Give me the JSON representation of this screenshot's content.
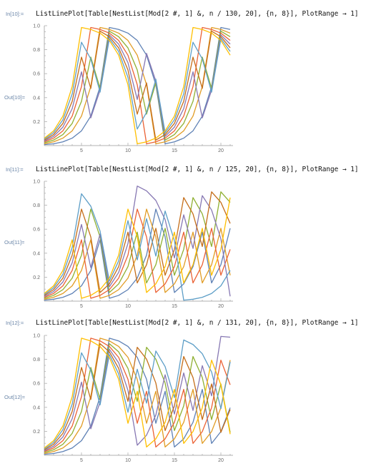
{
  "cells": [
    {
      "in_label": "In[10]:=",
      "code": "ListLinePlot[Table[NestList[Mod[2 #, 1] &, n / 130, 20], {n, 8}], PlotRange → 1]",
      "out_label": "Out[10]=",
      "divisor": 130
    },
    {
      "in_label": "In[11]:=",
      "code": "ListLinePlot[Table[NestList[Mod[2 #, 1] &, n / 125, 20], {n, 8}], PlotRange → 1]",
      "out_label": "Out[11]=",
      "divisor": 125
    },
    {
      "in_label": "In[12]:=",
      "code": "ListLinePlot[Table[NestList[Mod[2 #, 1] &, n / 131, 20], {n, 8}], PlotRange → 1]",
      "out_label": "Out[12]=",
      "divisor": 131
    }
  ],
  "chart_data": [
    {
      "type": "line",
      "title": "",
      "xlabel": "",
      "ylabel": "",
      "x_ticks": [
        "5",
        "10",
        "15",
        "20"
      ],
      "y_ticks": [
        "0.2",
        "0.4",
        "0.6",
        "0.8",
        "1.0"
      ],
      "xlim": [
        1,
        21
      ],
      "ylim": [
        0,
        1
      ],
      "grid": false,
      "series": [
        {
          "values": [
            0.008,
            0.015,
            0.031,
            0.062,
            0.123,
            0.246,
            0.492,
            0.985,
            0.969,
            0.938,
            0.877,
            0.754,
            0.508,
            0.015,
            0.031,
            0.062,
            0.123,
            0.246,
            0.492,
            0.985,
            0.969
          ]
        },
        {
          "values": [
            0.015,
            0.031,
            0.062,
            0.123,
            0.246,
            0.492,
            0.985,
            0.969,
            0.938,
            0.877,
            0.754,
            0.508,
            0.015,
            0.031,
            0.062,
            0.123,
            0.246,
            0.492,
            0.985,
            0.969,
            0.938
          ]
        },
        {
          "values": [
            0.023,
            0.046,
            0.092,
            0.185,
            0.369,
            0.738,
            0.477,
            0.954,
            0.908,
            0.815,
            0.631,
            0.262,
            0.523,
            0.046,
            0.092,
            0.185,
            0.369,
            0.738,
            0.477,
            0.954,
            0.908
          ]
        },
        {
          "values": [
            0.031,
            0.062,
            0.123,
            0.246,
            0.492,
            0.985,
            0.969,
            0.938,
            0.877,
            0.754,
            0.508,
            0.015,
            0.031,
            0.062,
            0.123,
            0.246,
            0.492,
            0.985,
            0.969,
            0.938,
            0.877
          ]
        },
        {
          "values": [
            0.038,
            0.077,
            0.154,
            0.308,
            0.615,
            0.231,
            0.462,
            0.923,
            0.846,
            0.692,
            0.385,
            0.769,
            0.538,
            0.077,
            0.154,
            0.308,
            0.615,
            0.231,
            0.462,
            0.923,
            0.846
          ]
        },
        {
          "values": [
            0.046,
            0.092,
            0.185,
            0.369,
            0.738,
            0.477,
            0.954,
            0.908,
            0.815,
            0.631,
            0.262,
            0.523,
            0.046,
            0.092,
            0.185,
            0.369,
            0.738,
            0.477,
            0.954,
            0.908,
            0.815
          ]
        },
        {
          "values": [
            0.054,
            0.108,
            0.215,
            0.431,
            0.862,
            0.723,
            0.446,
            0.892,
            0.785,
            0.569,
            0.138,
            0.277,
            0.554,
            0.108,
            0.215,
            0.431,
            0.862,
            0.723,
            0.446,
            0.892,
            0.785
          ]
        },
        {
          "values": [
            0.062,
            0.123,
            0.246,
            0.492,
            0.985,
            0.969,
            0.938,
            0.877,
            0.754,
            0.508,
            0.015,
            0.031,
            0.062,
            0.123,
            0.246,
            0.492,
            0.985,
            0.969,
            0.938,
            0.877,
            0.754
          ]
        }
      ]
    },
    {
      "type": "line",
      "title": "",
      "xlabel": "",
      "ylabel": "",
      "x_ticks": [
        "5",
        "10",
        "15",
        "20"
      ],
      "y_ticks": [
        "0.2",
        "0.4",
        "0.6",
        "0.8",
        "1.0"
      ],
      "xlim": [
        1,
        21
      ],
      "ylim": [
        0,
        1
      ],
      "grid": false,
      "series": [
        {
          "values": [
            0.008,
            0.016,
            0.032,
            0.064,
            0.128,
            0.256,
            0.512,
            0.024,
            0.048,
            0.096,
            0.192,
            0.384,
            0.768,
            0.536,
            0.072,
            0.144,
            0.288,
            0.576,
            0.152,
            0.304,
            0.608
          ]
        },
        {
          "values": [
            0.016,
            0.032,
            0.064,
            0.128,
            0.256,
            0.512,
            0.024,
            0.048,
            0.096,
            0.192,
            0.384,
            0.768,
            0.536,
            0.072,
            0.144,
            0.288,
            0.576,
            0.152,
            0.304,
            0.608,
            0.216
          ]
        },
        {
          "values": [
            0.024,
            0.048,
            0.096,
            0.192,
            0.384,
            0.768,
            0.536,
            0.072,
            0.144,
            0.288,
            0.576,
            0.152,
            0.304,
            0.608,
            0.216,
            0.432,
            0.864,
            0.728,
            0.456,
            0.912,
            0.824
          ]
        },
        {
          "values": [
            0.032,
            0.064,
            0.128,
            0.256,
            0.512,
            0.024,
            0.048,
            0.096,
            0.192,
            0.384,
            0.768,
            0.536,
            0.072,
            0.144,
            0.288,
            0.576,
            0.152,
            0.304,
            0.608,
            0.216,
            0.432
          ]
        },
        {
          "values": [
            0.04,
            0.08,
            0.16,
            0.32,
            0.64,
            0.28,
            0.56,
            0.12,
            0.24,
            0.48,
            0.96,
            0.92,
            0.84,
            0.68,
            0.36,
            0.72,
            0.44,
            0.88,
            0.76,
            0.52,
            0.04
          ]
        },
        {
          "values": [
            0.048,
            0.096,
            0.192,
            0.384,
            0.768,
            0.536,
            0.072,
            0.144,
            0.288,
            0.576,
            0.152,
            0.304,
            0.608,
            0.216,
            0.432,
            0.864,
            0.728,
            0.456,
            0.912,
            0.824,
            0.648
          ]
        },
        {
          "values": [
            0.056,
            0.112,
            0.224,
            0.448,
            0.896,
            0.792,
            0.584,
            0.168,
            0.336,
            0.672,
            0.344,
            0.688,
            0.376,
            0.752,
            0.504,
            0.008,
            0.016,
            0.032,
            0.064,
            0.128,
            0.256
          ]
        },
        {
          "values": [
            0.064,
            0.128,
            0.256,
            0.512,
            0.024,
            0.048,
            0.096,
            0.192,
            0.384,
            0.768,
            0.536,
            0.072,
            0.144,
            0.288,
            0.576,
            0.152,
            0.304,
            0.608,
            0.216,
            0.432,
            0.864
          ]
        }
      ]
    },
    {
      "type": "line",
      "title": "",
      "xlabel": "",
      "ylabel": "",
      "x_ticks": [
        "5",
        "10",
        "15",
        "20"
      ],
      "y_ticks": [
        "0.2",
        "0.4",
        "0.6",
        "0.8",
        "1.0"
      ],
      "xlim": [
        1,
        21
      ],
      "ylim": [
        0,
        1
      ],
      "grid": false,
      "series": [
        {
          "values": [
            0.008,
            0.015,
            0.031,
            0.061,
            0.122,
            0.244,
            0.489,
            0.977,
            0.954,
            0.908,
            0.817,
            0.634,
            0.267,
            0.534,
            0.069,
            0.137,
            0.275,
            0.55,
            0.099,
            0.198,
            0.397
          ]
        },
        {
          "values": [
            0.015,
            0.031,
            0.061,
            0.122,
            0.244,
            0.489,
            0.977,
            0.954,
            0.908,
            0.817,
            0.634,
            0.267,
            0.534,
            0.069,
            0.137,
            0.275,
            0.55,
            0.099,
            0.198,
            0.397,
            0.794
          ]
        },
        {
          "values": [
            0.023,
            0.046,
            0.092,
            0.183,
            0.366,
            0.733,
            0.466,
            0.931,
            0.863,
            0.725,
            0.45,
            0.901,
            0.802,
            0.603,
            0.206,
            0.412,
            0.824,
            0.649,
            0.298,
            0.595,
            0.191
          ]
        },
        {
          "values": [
            0.031,
            0.061,
            0.122,
            0.244,
            0.489,
            0.977,
            0.954,
            0.908,
            0.817,
            0.634,
            0.267,
            0.534,
            0.069,
            0.137,
            0.275,
            0.55,
            0.099,
            0.198,
            0.397,
            0.794,
            0.588
          ]
        },
        {
          "values": [
            0.038,
            0.076,
            0.153,
            0.305,
            0.611,
            0.221,
            0.443,
            0.885,
            0.771,
            0.542,
            0.084,
            0.168,
            0.336,
            0.672,
            0.344,
            0.687,
            0.374,
            0.748,
            0.496,
            0.992,
            0.985
          ]
        },
        {
          "values": [
            0.046,
            0.092,
            0.183,
            0.366,
            0.733,
            0.466,
            0.931,
            0.863,
            0.725,
            0.45,
            0.901,
            0.802,
            0.603,
            0.206,
            0.412,
            0.824,
            0.649,
            0.298,
            0.595,
            0.191,
            0.382
          ]
        },
        {
          "values": [
            0.053,
            0.107,
            0.214,
            0.427,
            0.855,
            0.71,
            0.42,
            0.84,
            0.679,
            0.359,
            0.718,
            0.435,
            0.87,
            0.74,
            0.481,
            0.962,
            0.924,
            0.847,
            0.695,
            0.389,
            0.779
          ]
        },
        {
          "values": [
            0.061,
            0.122,
            0.244,
            0.489,
            0.977,
            0.954,
            0.908,
            0.817,
            0.634,
            0.267,
            0.534,
            0.069,
            0.137,
            0.275,
            0.55,
            0.099,
            0.198,
            0.397,
            0.794,
            0.588,
            0.176
          ]
        }
      ]
    }
  ],
  "colors": {
    "series": [
      "#5e81b5",
      "#e19c24",
      "#8fb032",
      "#eb6235",
      "#8778b3",
      "#c56e1a",
      "#5d9ec7",
      "#ffbf00"
    ],
    "axis": "#b0b0b0",
    "tick_label": "#666666",
    "cell_label": "#6b86a8"
  }
}
